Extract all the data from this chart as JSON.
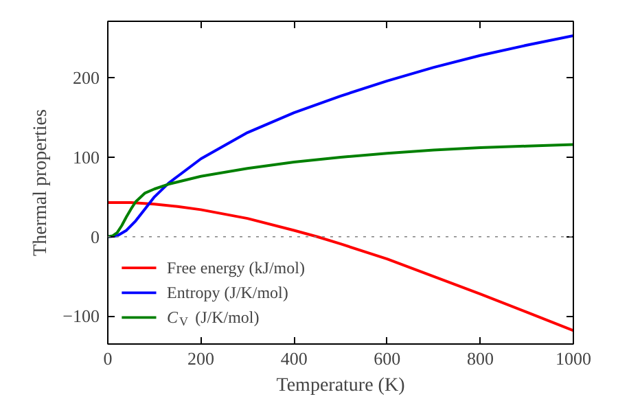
{
  "chart_data": {
    "type": "line",
    "xlabel": "Temperature (K)",
    "ylabel": "Thermal properties",
    "xlim": [
      0,
      1000
    ],
    "ylim": [
      -135,
      271
    ],
    "xticks": [
      0,
      200,
      400,
      600,
      800,
      1000
    ],
    "yticks": [
      -100,
      0,
      100,
      200
    ],
    "grid": false,
    "legend": "bottom left",
    "marker": "none",
    "line_style": "solid",
    "ref_lines": [
      {
        "axis": "y",
        "value": 0,
        "color": "#808080",
        "line_style": "dotted"
      }
    ],
    "series": [
      {
        "name": "Free energy (kJ/mol)",
        "color": "#ff0000",
        "x": [
          0,
          50,
          100,
          150,
          200,
          300,
          400,
          450,
          500,
          600,
          700,
          800,
          900,
          1000
        ],
        "values": [
          43,
          43,
          41,
          38,
          34,
          23,
          8,
          0,
          -9,
          -28,
          -50,
          -72,
          -95,
          -118
        ]
      },
      {
        "name": "Entropy (J/K/mol)",
        "color": "#0000ff",
        "x": [
          0,
          20,
          40,
          60,
          80,
          100,
          130,
          150,
          200,
          300,
          400,
          500,
          600,
          700,
          800,
          900,
          1000
        ],
        "values": [
          0,
          1,
          8,
          20,
          35,
          50,
          67,
          76,
          98,
          131,
          156,
          177,
          196,
          213,
          228,
          241,
          253
        ]
      },
      {
        "name": "C$_{V}$ (J/K/mol)",
        "color": "#008000",
        "x": [
          0,
          10,
          20,
          30,
          40,
          50,
          60,
          80,
          100,
          130,
          200,
          300,
          400,
          500,
          600,
          700,
          800,
          900,
          1000
        ],
        "values": [
          0,
          1,
          5,
          14,
          25,
          35,
          44,
          55,
          60,
          66,
          76,
          86,
          94,
          100,
          105,
          109,
          112,
          114,
          116
        ]
      }
    ]
  }
}
